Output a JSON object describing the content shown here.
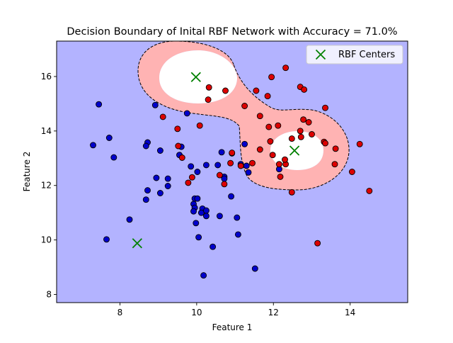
{
  "chart_data": {
    "type": "scatter",
    "title": "Decision Boundary of Inital RBF Network with Accuracy = 71.0%",
    "xlabel": "Feature 1",
    "ylabel": "Feature 2",
    "xlim": [
      6.35,
      15.5
    ],
    "ylim": [
      7.7,
      17.3
    ],
    "xticks": [
      "8",
      "10",
      "12",
      "14"
    ],
    "yticks": [
      "8",
      "10",
      "12",
      "14",
      "16"
    ],
    "xtick_values": [
      8,
      10,
      12,
      14
    ],
    "ytick_values": [
      8,
      10,
      12,
      14,
      16
    ],
    "grid": false,
    "legend": {
      "position": "top-right",
      "entries": [
        "RBF Centers"
      ]
    },
    "colors": {
      "background_region": "#b3b3ff",
      "boundary_region": "#ffb3b3",
      "center_region": "#ffffff",
      "class_0": "#0000cc",
      "class_1": "#dd0000",
      "centers": "#008000"
    },
    "centers": [
      [
        9.98,
        15.98
      ],
      [
        12.55,
        13.28
      ],
      [
        8.45,
        9.88
      ]
    ],
    "series": [
      {
        "class": 0,
        "points": [
          [
            7.45,
            14.98
          ],
          [
            7.72,
            13.75
          ],
          [
            7.3,
            13.48
          ],
          [
            7.84,
            13.03
          ],
          [
            8.92,
            14.95
          ],
          [
            9.75,
            14.65
          ],
          [
            8.72,
            13.58
          ],
          [
            8.68,
            13.45
          ],
          [
            9.05,
            13.28
          ],
          [
            9.55,
            13.12
          ],
          [
            9.6,
            13.42
          ],
          [
            9.85,
            12.7
          ],
          [
            9.25,
            12.25
          ],
          [
            8.95,
            12.28
          ],
          [
            9.25,
            11.98
          ],
          [
            9.05,
            11.72
          ],
          [
            8.72,
            11.82
          ],
          [
            8.68,
            11.48
          ],
          [
            8.25,
            10.75
          ],
          [
            7.65,
            10.02
          ],
          [
            9.95,
            11.52
          ],
          [
            10.02,
            11.52
          ],
          [
            9.92,
            11.32
          ],
          [
            9.95,
            11.18
          ],
          [
            9.92,
            11.05
          ],
          [
            10.15,
            11.15
          ],
          [
            10.12,
            11.0
          ],
          [
            10.25,
            11.08
          ],
          [
            10.25,
            10.88
          ],
          [
            9.98,
            10.62
          ],
          [
            10.6,
            10.88
          ],
          [
            10.05,
            10.1
          ],
          [
            10.42,
            9.75
          ],
          [
            10.18,
            8.7
          ],
          [
            11.05,
            10.82
          ],
          [
            11.08,
            10.2
          ],
          [
            10.9,
            11.6
          ],
          [
            10.72,
            12.32
          ],
          [
            10.72,
            12.25
          ],
          [
            10.55,
            12.75
          ],
          [
            10.25,
            12.75
          ],
          [
            10.02,
            12.5
          ],
          [
            10.65,
            13.22
          ],
          [
            10.92,
            13.18
          ],
          [
            11.25,
            13.52
          ],
          [
            11.35,
            12.48
          ],
          [
            12.15,
            12.6
          ],
          [
            11.52,
            8.95
          ],
          [
            11.3,
            12.72
          ],
          [
            11.15,
            12.78
          ]
        ]
      },
      {
        "class": 1,
        "points": [
          [
            10.32,
            15.6
          ],
          [
            10.3,
            15.15
          ],
          [
            10.75,
            15.48
          ],
          [
            10.08,
            14.2
          ],
          [
            9.5,
            14.08
          ],
          [
            9.12,
            14.52
          ],
          [
            9.52,
            13.45
          ],
          [
            9.62,
            13.02
          ],
          [
            9.88,
            12.3
          ],
          [
            9.78,
            12.1
          ],
          [
            10.6,
            12.38
          ],
          [
            10.72,
            12.05
          ],
          [
            10.92,
            13.2
          ],
          [
            10.88,
            12.82
          ],
          [
            11.15,
            12.72
          ],
          [
            11.25,
            14.92
          ],
          [
            11.55,
            15.48
          ],
          [
            11.85,
            15.28
          ],
          [
            11.95,
            15.98
          ],
          [
            12.32,
            16.32
          ],
          [
            11.65,
            14.55
          ],
          [
            11.88,
            14.15
          ],
          [
            12.12,
            14.2
          ],
          [
            11.92,
            13.62
          ],
          [
            11.65,
            13.32
          ],
          [
            11.98,
            13.12
          ],
          [
            12.15,
            12.78
          ],
          [
            12.32,
            12.78
          ],
          [
            12.3,
            12.95
          ],
          [
            12.18,
            12.32
          ],
          [
            11.45,
            12.82
          ],
          [
            12.48,
            13.72
          ],
          [
            12.7,
            14.0
          ],
          [
            12.72,
            13.78
          ],
          [
            12.78,
            14.42
          ],
          [
            12.92,
            14.32
          ],
          [
            13.0,
            13.88
          ],
          [
            12.7,
            15.62
          ],
          [
            12.8,
            15.52
          ],
          [
            13.35,
            14.85
          ],
          [
            13.32,
            13.6
          ],
          [
            13.35,
            13.55
          ],
          [
            13.62,
            13.35
          ],
          [
            13.6,
            12.78
          ],
          [
            14.05,
            12.5
          ],
          [
            14.25,
            13.52
          ],
          [
            14.5,
            11.8
          ],
          [
            12.48,
            11.75
          ],
          [
            13.15,
            9.88
          ]
        ]
      }
    ]
  }
}
